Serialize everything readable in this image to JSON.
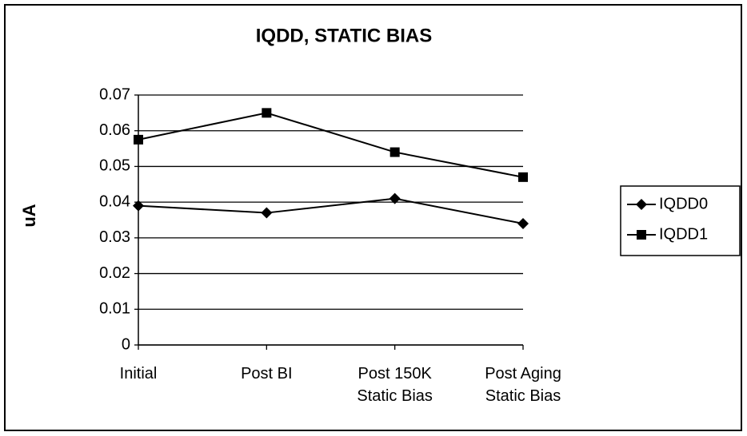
{
  "chart_data": {
    "type": "line",
    "title": "IQDD, STATIC BIAS",
    "y_label": "uA",
    "categories": [
      "Initial",
      "Post BI",
      "Post 150K\nStatic Bias",
      "Post Aging\nStatic Bias"
    ],
    "series": [
      {
        "name": "IQDD0",
        "color": "#000000",
        "marker": "diamond",
        "values": [
          0.039,
          0.037,
          0.041,
          0.034
        ]
      },
      {
        "name": "IQDD1",
        "color": "#000000",
        "marker": "square",
        "values": [
          0.0575,
          0.065,
          0.054,
          0.047
        ]
      }
    ],
    "ylim": [
      0,
      0.07
    ],
    "yticks": [
      0,
      0.01,
      0.02,
      0.03,
      0.04,
      0.05,
      0.06,
      0.07
    ],
    "grid": true,
    "legend": "right"
  }
}
